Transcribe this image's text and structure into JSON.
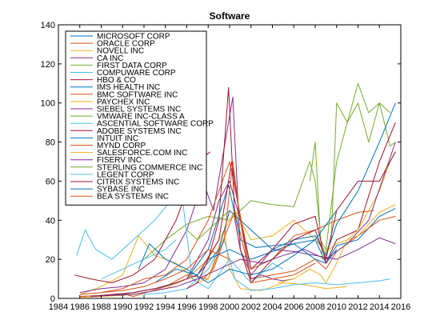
{
  "chart_data": {
    "type": "line",
    "title": "Software",
    "xlabel": "",
    "ylabel": "",
    "xlim": [
      1984,
      2016
    ],
    "ylim": [
      0,
      140
    ],
    "xticks": [
      1984,
      1986,
      1988,
      1990,
      1992,
      1994,
      1996,
      1998,
      2000,
      2002,
      2004,
      2006,
      2008,
      2010,
      2012,
      2014,
      2016
    ],
    "yticks": [
      0,
      20,
      40,
      60,
      80,
      100,
      120,
      140
    ],
    "grid": false,
    "legend_position": "top-left",
    "series": [
      {
        "name": "MICROSOFT CORP",
        "color": "#0072bd",
        "x": [
          1986,
          1988,
          1990,
          1992,
          1994,
          1996,
          1998,
          1999.9,
          2001,
          2002.5,
          2004,
          2006,
          2008,
          2009,
          2010,
          2012,
          2014,
          2015.5
        ],
        "y": [
          1,
          1.5,
          2,
          4,
          6,
          10,
          25,
          58,
          30,
          26,
          27,
          28,
          30,
          18,
          27,
          30,
          42,
          46
        ]
      },
      {
        "name": "ORACLE CORP",
        "color": "#d95319",
        "x": [
          1986,
          1988,
          1990,
          1991,
          1994,
          1996,
          1998,
          2000.5,
          2002,
          2004,
          2006,
          2008,
          2009,
          2010,
          2012,
          2014,
          2015.5
        ],
        "y": [
          1,
          1.5,
          2.5,
          1,
          6,
          12,
          10,
          45,
          10,
          12,
          14,
          20,
          15,
          24,
          32,
          40,
          42
        ]
      },
      {
        "name": "NOVELL INC",
        "color": "#edb120",
        "x": [
          1986,
          1988,
          1990,
          1991.5,
          1993,
          1995,
          1997,
          1998,
          1999.5,
          2000,
          2001,
          2003,
          2005,
          2007,
          2009,
          2011
        ],
        "y": [
          2,
          6,
          12,
          32,
          22,
          18,
          8,
          10,
          35,
          15,
          5,
          4,
          8,
          7,
          5,
          6
        ]
      },
      {
        "name": "CA INC",
        "color": "#7e2f8e",
        "x": [
          1986,
          1988,
          1990,
          1992,
          1994,
          1996,
          1997.5,
          1998.5,
          2000.3,
          2001,
          2002,
          2004,
          2006,
          2008,
          2010,
          2012,
          2014,
          2015.5
        ],
        "y": [
          3,
          5,
          6,
          8,
          15,
          35,
          60,
          45,
          103,
          25,
          12,
          25,
          24,
          22,
          20,
          25,
          31,
          28
        ]
      },
      {
        "name": "FIRST DATA CORP",
        "color": "#77ac30",
        "x": [
          1992,
          1994,
          1996,
          1998,
          2000,
          2002,
          2004,
          2006,
          2007.5,
          2008,
          2008.7,
          2009.5,
          2010,
          2011,
          2012,
          2013,
          2014,
          2015
        ],
        "y": [
          20,
          30,
          38,
          42,
          40,
          50,
          48,
          47,
          70,
          60,
          20,
          30,
          100,
          90,
          110,
          95,
          100,
          95
        ]
      },
      {
        "name": "COMPUWARE CORP",
        "color": "#4dbeee",
        "x": [
          1992,
          1994,
          1996,
          1998,
          1999.5,
          2000.5,
          2002,
          2004,
          2006,
          2008,
          2010,
          2012,
          2014,
          2015
        ],
        "y": [
          2,
          3,
          5,
          15,
          30,
          10,
          4,
          5,
          7,
          8,
          7,
          8,
          9,
          10
        ]
      },
      {
        "name": "HBO & CO",
        "color": "#a2142f",
        "x": [
          1985.5,
          1987,
          1989,
          1991,
          1993,
          1995,
          1997,
          1998.2
        ],
        "y": [
          12,
          10,
          8,
          12,
          20,
          40,
          70,
          75
        ]
      },
      {
        "name": "IMS HEALTH INC",
        "color": "#0072bd",
        "x": [
          1996,
          1998,
          2000,
          2002,
          2004,
          2006,
          2008,
          2009,
          2010
        ],
        "y": [
          10,
          20,
          25,
          20,
          24,
          28,
          20,
          18,
          25
        ]
      },
      {
        "name": "BMC SOFTWARE INC",
        "color": "#d95319",
        "x": [
          1988,
          1990,
          1992,
          1994,
          1996,
          1998,
          2000,
          2002,
          2004,
          2006,
          2008,
          2010,
          2012,
          2013.5
        ],
        "y": [
          3,
          5,
          10,
          12,
          20,
          40,
          70,
          15,
          20,
          32,
          35,
          40,
          44,
          45
        ]
      },
      {
        "name": "PAYCHEX INC",
        "color": "#edb120",
        "x": [
          1986,
          1988,
          1990,
          1992,
          1994,
          1996,
          1998,
          2000.5,
          2002,
          2004,
          2006,
          2008,
          2009,
          2010,
          2012,
          2014,
          2015.5
        ],
        "y": [
          0.5,
          1,
          1.5,
          3,
          5,
          10,
          20,
          45,
          30,
          32,
          40,
          30,
          24,
          28,
          32,
          44,
          48
        ]
      },
      {
        "name": "SIEBEL SYSTEMS INC",
        "color": "#7e2f8e",
        "x": [
          1996,
          1997,
          1998,
          1999,
          2000,
          2001,
          2002,
          2003,
          2004,
          2005,
          2006
        ],
        "y": [
          10,
          20,
          30,
          50,
          60,
          40,
          10,
          12,
          10,
          9,
          10
        ]
      },
      {
        "name": "VMWARE INC-CLASS A",
        "color": "#77ac30",
        "x": [
          2007.5,
          2008,
          2008.5,
          2009,
          2010,
          2011,
          2012,
          2013,
          2014,
          2015,
          2015.5
        ],
        "y": [
          60,
          80,
          30,
          25,
          70,
          90,
          100,
          80,
          100,
          78,
          80
        ]
      },
      {
        "name": "ASCENTIAL SOFTWARE CORP",
        "color": "#4dbeee",
        "x": [
          1985.7,
          1986.5,
          1987.5,
          1989,
          1991,
          1993,
          1994.5,
          1995.5,
          1996.5,
          1998,
          2000,
          2002,
          2004,
          2005
        ],
        "y": [
          22,
          35,
          25,
          20,
          30,
          40,
          50,
          55,
          10,
          5,
          20,
          8,
          18,
          15
        ]
      },
      {
        "name": "ADOBE SYSTEMS INC",
        "color": "#a2142f",
        "x": [
          1987,
          1989,
          1991,
          1993,
          1995,
          1997,
          1999,
          2000.2,
          2001,
          2002,
          2004,
          2006,
          2008,
          2009,
          2010,
          2012,
          2014,
          2015.5
        ],
        "y": [
          1,
          2,
          3,
          5,
          8,
          12,
          30,
          70,
          40,
          15,
          25,
          38,
          42,
          18,
          30,
          35,
          70,
          90
        ]
      },
      {
        "name": "INTUIT INC",
        "color": "#0072bd",
        "x": [
          1993,
          1995,
          1997,
          1999,
          2000,
          2002,
          2004,
          2006,
          2008,
          2009,
          2010,
          2012,
          2014,
          2015.5
        ],
        "y": [
          8,
          15,
          12,
          25,
          45,
          35,
          25,
          30,
          32,
          22,
          38,
          55,
          80,
          100
        ]
      },
      {
        "name": "MYND CORP",
        "color": "#d95319",
        "x": [
          1986,
          1988,
          1990,
          1992,
          1994,
          1996,
          1998,
          2000
        ],
        "y": [
          2,
          3,
          4,
          6,
          10,
          15,
          25,
          20
        ]
      },
      {
        "name": "SALESFORCE.COM INC",
        "color": "#edb120",
        "x": [
          2004.5,
          2006,
          2007.5,
          2008.5,
          2009,
          2010,
          2011,
          2012,
          2013,
          2014,
          2015,
          2015.5
        ],
        "y": [
          8,
          10,
          15,
          12,
          8,
          18,
          30,
          35,
          45,
          55,
          70,
          75
        ]
      },
      {
        "name": "FISERV INC",
        "color": "#7e2f8e",
        "x": [
          1987,
          1989,
          1991,
          1993,
          1995,
          1997,
          1999,
          2001,
          2003,
          2005,
          2007,
          2009,
          2011,
          2013,
          2015.5
        ],
        "y": [
          1,
          1.5,
          2,
          4,
          6,
          10,
          15,
          20,
          18,
          22,
          25,
          20,
          28,
          40,
          80
        ]
      },
      {
        "name": "STERLING COMMERCE INC",
        "color": "#77ac30",
        "x": [
          1996,
          1997,
          1998,
          1999,
          2000
        ],
        "y": [
          35,
          30,
          35,
          40,
          45
        ]
      },
      {
        "name": "LEGENT CORP",
        "color": "#4dbeee",
        "x": [
          1988,
          1990,
          1992,
          1994,
          1995
        ],
        "y": [
          10,
          15,
          20,
          25,
          30
        ]
      },
      {
        "name": "CITRIX SYSTEMS INC",
        "color": "#a2142f",
        "x": [
          1996,
          1997,
          1998,
          1999,
          1999.9,
          2000.5,
          2001,
          2002,
          2004,
          2006,
          2008,
          2009,
          2010,
          2012,
          2014,
          2015.5
        ],
        "y": [
          5,
          8,
          20,
          40,
          108,
          40,
          25,
          8,
          20,
          30,
          35,
          20,
          45,
          60,
          60,
          75
        ]
      },
      {
        "name": "SYBASE INC",
        "color": "#0072bd",
        "x": [
          1991.5,
          1992.5,
          1994,
          1996,
          1998,
          2000,
          2002,
          2004,
          2006,
          2008,
          2010
        ],
        "y": [
          15,
          28,
          20,
          15,
          8,
          15,
          12,
          15,
          22,
          30,
          45
        ]
      },
      {
        "name": "BEA SYSTEMS INC",
        "color": "#d95319",
        "x": [
          1997.5,
          1998.5,
          1999.5,
          2000.3,
          2001,
          2002,
          2004,
          2006,
          2008
        ],
        "y": [
          10,
          15,
          30,
          70,
          40,
          8,
          10,
          12,
          18
        ]
      }
    ]
  }
}
